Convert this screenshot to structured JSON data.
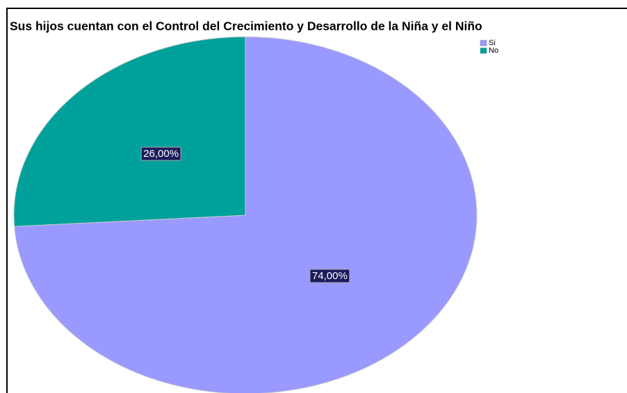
{
  "chart_data": {
    "type": "pie",
    "title": "Sus hijos cuentan con el Control del Crecimiento y Desarrollo de la Niña y el Niño",
    "categories": [
      "Si",
      "No"
    ],
    "values": [
      74,
      26
    ],
    "value_labels": [
      "74,00%",
      "26,00%"
    ],
    "colors": [
      "#9999ff",
      "#00a19b"
    ],
    "legend": "top-right"
  }
}
